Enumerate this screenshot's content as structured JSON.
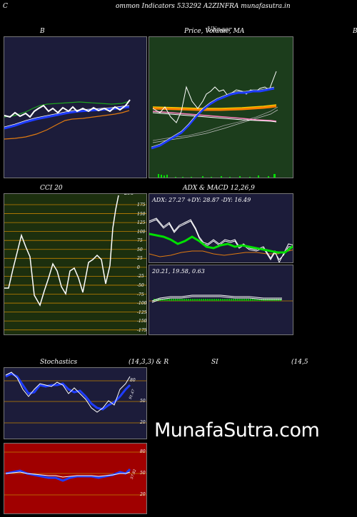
{
  "header": {
    "title": "C",
    "subtitle": "ommon  Indicators 533292  A2ZINFRA munafasutra.in"
  },
  "panels": {
    "bollinger": {
      "title": "B"
    },
    "price": {
      "title": "Price,  Volume,  MA",
      "title_overlap": "Ulinger"
    },
    "edge": {
      "title": "B"
    },
    "cci": {
      "title": "CCI 20",
      "value": "298",
      "ticks": [
        "175",
        "150",
        "125",
        "100",
        "75",
        "50",
        "25",
        "0",
        "-25",
        "-50",
        "-75",
        "-100",
        "-125",
        "-150",
        "-175"
      ]
    },
    "adx": {
      "title": "ADX  & MACD 12,26,9",
      "readout": "ADX: 27.27  +DY: 28.87 -DY: 16.49"
    },
    "macd": {
      "readout": "20.21,  19.58,  0.63"
    },
    "stoch": {
      "title_left": "Stochastics",
      "title_mid": "(14,3,3) & R",
      "title_right": "SI",
      "title_far": "(14,5",
      "ticks": [
        "80",
        "50",
        "20"
      ],
      "value": "91.47"
    },
    "rsi": {
      "ticks": [
        "80",
        "50",
        "20"
      ],
      "value": "57.82"
    }
  },
  "watermark": "MunafaSutra.com",
  "colors": {
    "panel_navy": "#1c1c3a",
    "panel_green": "#1c3d1c",
    "panel_darkgreen": "#1c2f0e",
    "panel_red": "#a00000"
  }
}
